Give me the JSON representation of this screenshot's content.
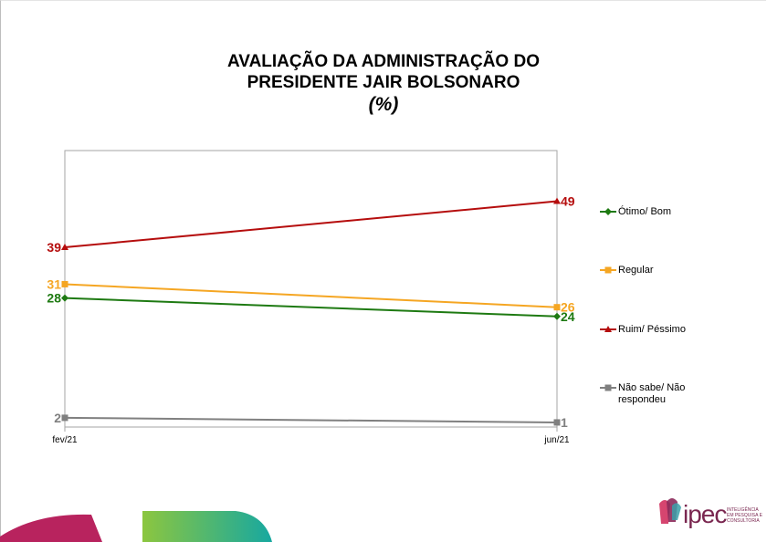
{
  "title": {
    "line1": "AVALIAÇÃO DA ADMINISTRAÇÃO DO",
    "line2": "PRESIDENTE JAIR BOLSONARO",
    "unit": "(%)"
  },
  "chart_data": {
    "type": "line",
    "title": "AVALIAÇÃO DA ADMINISTRAÇÃO DO PRESIDENTE JAIR BOLSONARO (%)",
    "xlabel": "",
    "ylabel": "",
    "x": [
      "fev/21",
      "jun/21"
    ],
    "ylim": [
      0,
      60
    ],
    "grid": false,
    "legend_position": "right",
    "series": [
      {
        "name": "Ótimo/ Bom",
        "values": [
          28,
          24
        ],
        "color": "#1e7a12",
        "marker": "diamond"
      },
      {
        "name": "Regular",
        "values": [
          31,
          26
        ],
        "color": "#f5a623",
        "marker": "square"
      },
      {
        "name": "Ruim/ Péssimo",
        "values": [
          39,
          49
        ],
        "color": "#b50d0d",
        "marker": "triangle"
      },
      {
        "name": "Não sabe/ Não respondeu",
        "values": [
          2,
          1
        ],
        "color": "#808080",
        "marker": "square"
      }
    ]
  },
  "logo": {
    "text": "ipec",
    "tagline": "INTELIGÊNCIA EM PESQUISA E CONSULTORIA"
  },
  "colors": {
    "deco_magenta": "#b8235e",
    "deco_green": "#8cc63f",
    "deco_teal": "#17a8a0"
  }
}
